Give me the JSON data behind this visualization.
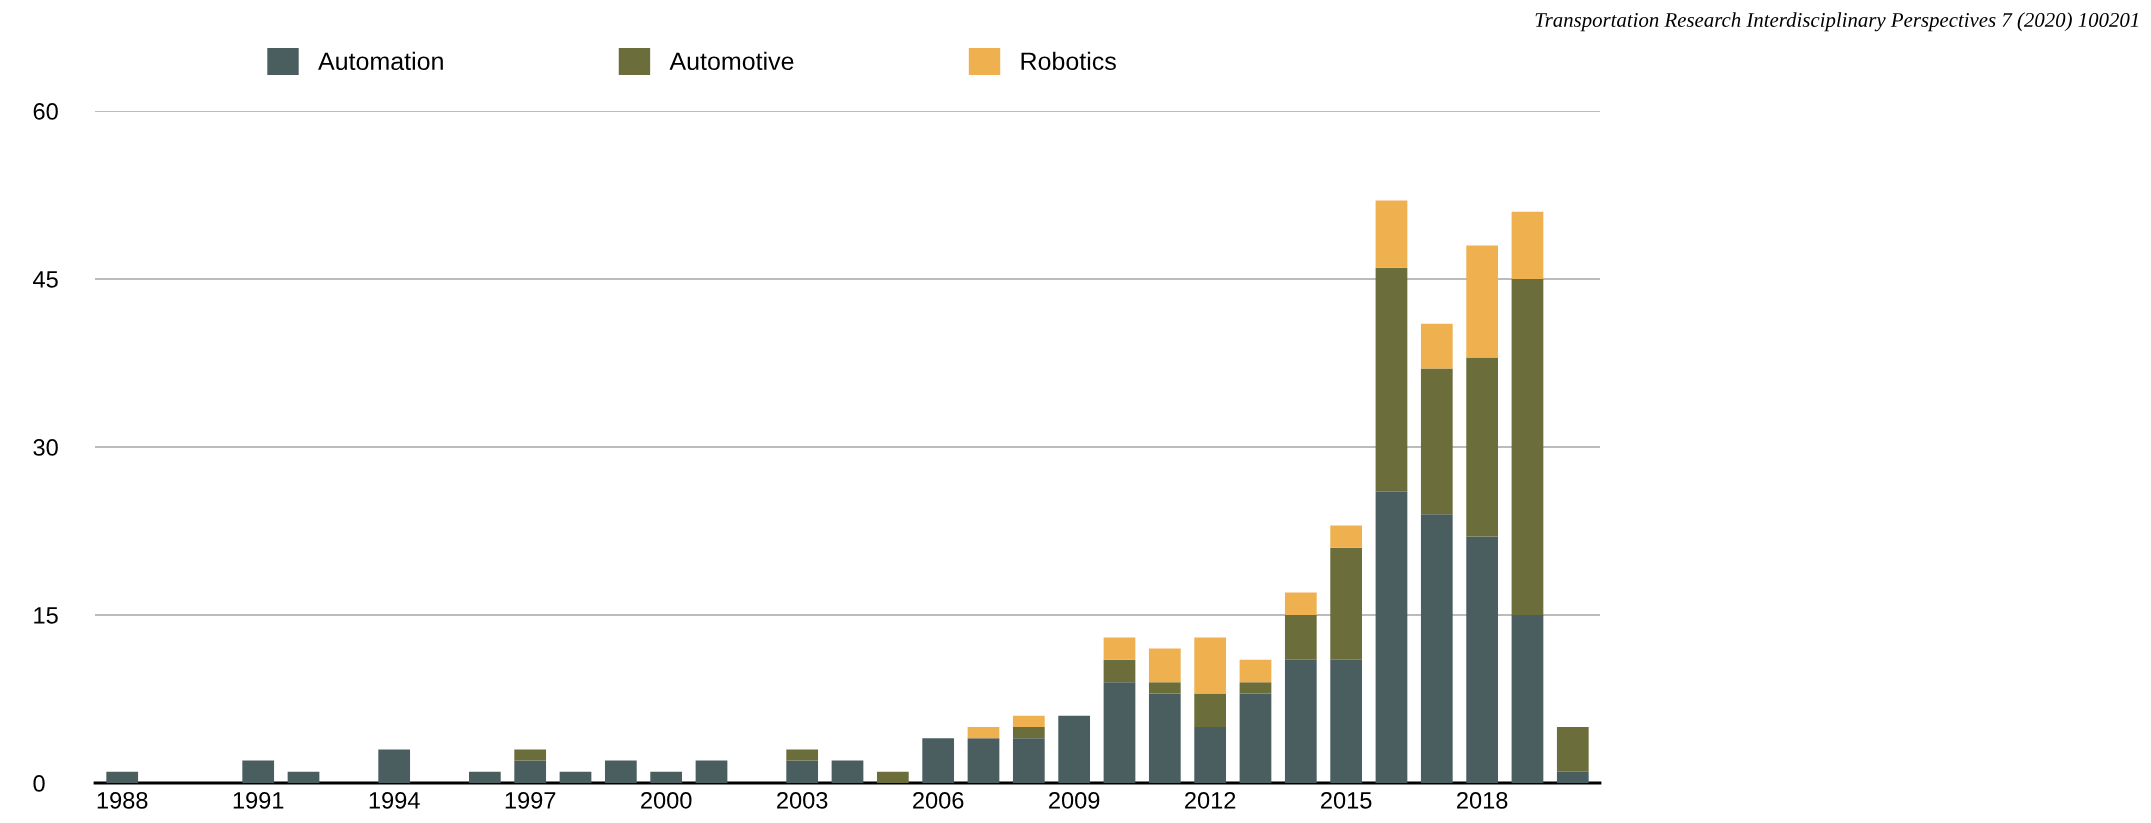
{
  "chart_data": {
    "type": "bar",
    "stacked": true,
    "annotations": [
      "Transportation Research Interdisciplinary Perspectives 7 (2020) 100201"
    ],
    "categories": [
      "1988",
      null,
      null,
      "1991",
      null,
      null,
      "1994",
      null,
      null,
      "1997",
      null,
      null,
      "2000",
      null,
      null,
      "2003",
      null,
      null,
      "2006",
      null,
      null,
      "2009",
      null,
      null,
      "2012",
      null,
      null,
      "2015",
      null,
      null,
      "2018",
      null,
      null
    ],
    "series": [
      {
        "name": "Automation",
        "color": "#4a5e60",
        "values": [
          1,
          0,
          0,
          2,
          1,
          0,
          3,
          0,
          1,
          2,
          1,
          2,
          1,
          2,
          0,
          2,
          2,
          0,
          4,
          4,
          4,
          6,
          9,
          8,
          5,
          8,
          11,
          11,
          26,
          24,
          22,
          15,
          1
        ]
      },
      {
        "name": "Automotive",
        "color": "#6b6e3a",
        "values": [
          0,
          0,
          0,
          0,
          0,
          0,
          0,
          0,
          0,
          1,
          0,
          0,
          0,
          0,
          0,
          1,
          0,
          1,
          0,
          0,
          1,
          0,
          2,
          1,
          3,
          1,
          4,
          10,
          20,
          13,
          16,
          30,
          4
        ]
      },
      {
        "name": "Robotics",
        "color": "#efb050",
        "values": [
          0,
          0,
          0,
          0,
          0,
          0,
          0,
          0,
          0,
          0,
          0,
          0,
          0,
          0,
          0,
          0,
          0,
          0,
          0,
          1,
          1,
          0,
          2,
          3,
          5,
          2,
          2,
          2,
          6,
          4,
          10,
          6,
          0
        ]
      }
    ],
    "ylim": [
      0,
      60
    ],
    "yticks": [
      0,
      15,
      30,
      45,
      60
    ],
    "grid": "y",
    "legend": "top"
  }
}
